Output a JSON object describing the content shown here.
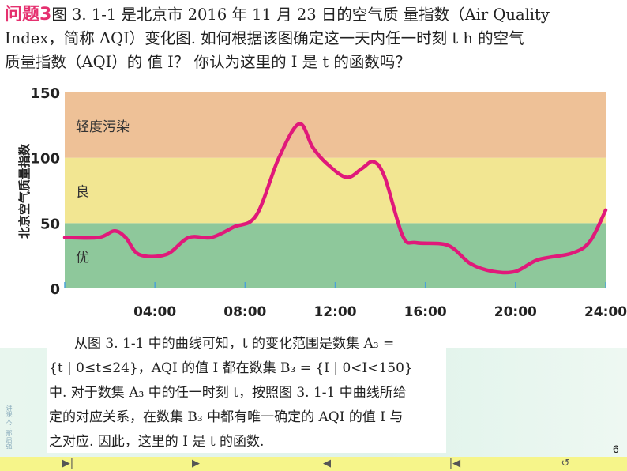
{
  "question": {
    "label": "问题3",
    "lines": [
      "图 3. 1-1 是北京市 2016 年 11 月 23 日的空气质 量指数（Air Quality",
      "Index，简称 AQI）变化图. 如何根据该图确定这一天内任一时刻 t h 的空气",
      "质量指数（AQI）的 值 I？ 你认为这里的 I 是 t 的函数吗？"
    ]
  },
  "chart_data": {
    "type": "line",
    "title": "",
    "xlabel": "",
    "ylabel": "北京空气质量指数",
    "xlim": [
      0,
      24
    ],
    "ylim": [
      0,
      150
    ],
    "x_ticks": [
      4,
      8,
      12,
      16,
      20,
      24
    ],
    "x_tick_labels": [
      "04:00",
      "08:00",
      "12:00",
      "16:00",
      "20:00",
      "24:00"
    ],
    "y_ticks": [
      0,
      50,
      100,
      150
    ],
    "y_tick_labels": [
      "0",
      "50",
      "100",
      "150"
    ],
    "grid": false,
    "bands": [
      {
        "label": "优",
        "from": 0,
        "to": 50,
        "color": "#8ec89b"
      },
      {
        "label": "良",
        "from": 50,
        "to": 100,
        "color": "#f2e692"
      },
      {
        "label": "轻度污染",
        "from": 100,
        "to": 150,
        "color": "#eec197"
      }
    ],
    "line_color": "#e0197a",
    "series": [
      {
        "x": [
          0,
          1.5,
          2.2,
          2.7,
          3.3,
          4.5,
          5.5,
          6.5,
          7.5,
          8.5,
          9.5,
          10.4,
          11.0,
          11.6,
          12.5,
          13.2,
          13.7,
          14.2,
          15.0,
          15.6,
          17.0,
          18.0,
          19.0,
          20.0,
          21.0,
          22.5,
          23.3,
          24.0
        ],
        "y": [
          39,
          39,
          44,
          39,
          26,
          26,
          39,
          39,
          47,
          56,
          100,
          126,
          108,
          96,
          85,
          92,
          97,
          85,
          40,
          35,
          33,
          19,
          13,
          13,
          22,
          27,
          36,
          60
        ]
      }
    ]
  },
  "explanation": {
    "lines": [
      "从图 3. 1-1 中的曲线可知，t 的变化范围是数集 A₃ =",
      "{t | 0≤t≤24}，AQI 的值 I 都在数集 B₃ = {I | 0<I<150}",
      "中. 对于数集 A₃ 中的任一时刻 t，按照图 3. 1-1 中曲线所给",
      "定的对应关系，在数集 B₃ 中都有唯一确定的 AQI 的值 I 与",
      "之对应. 因此，这里的 I 是 t 的函数."
    ]
  },
  "side_note": "讲课人：邢启强",
  "page_number": "6",
  "nav": {
    "icons": [
      "last-slide-icon",
      "next-slide-icon",
      "prev-slide-icon",
      "first-slide-icon",
      "return-icon"
    ],
    "glyphs": [
      "▶|",
      "▶",
      "◀",
      "|◀",
      "↺"
    ]
  }
}
